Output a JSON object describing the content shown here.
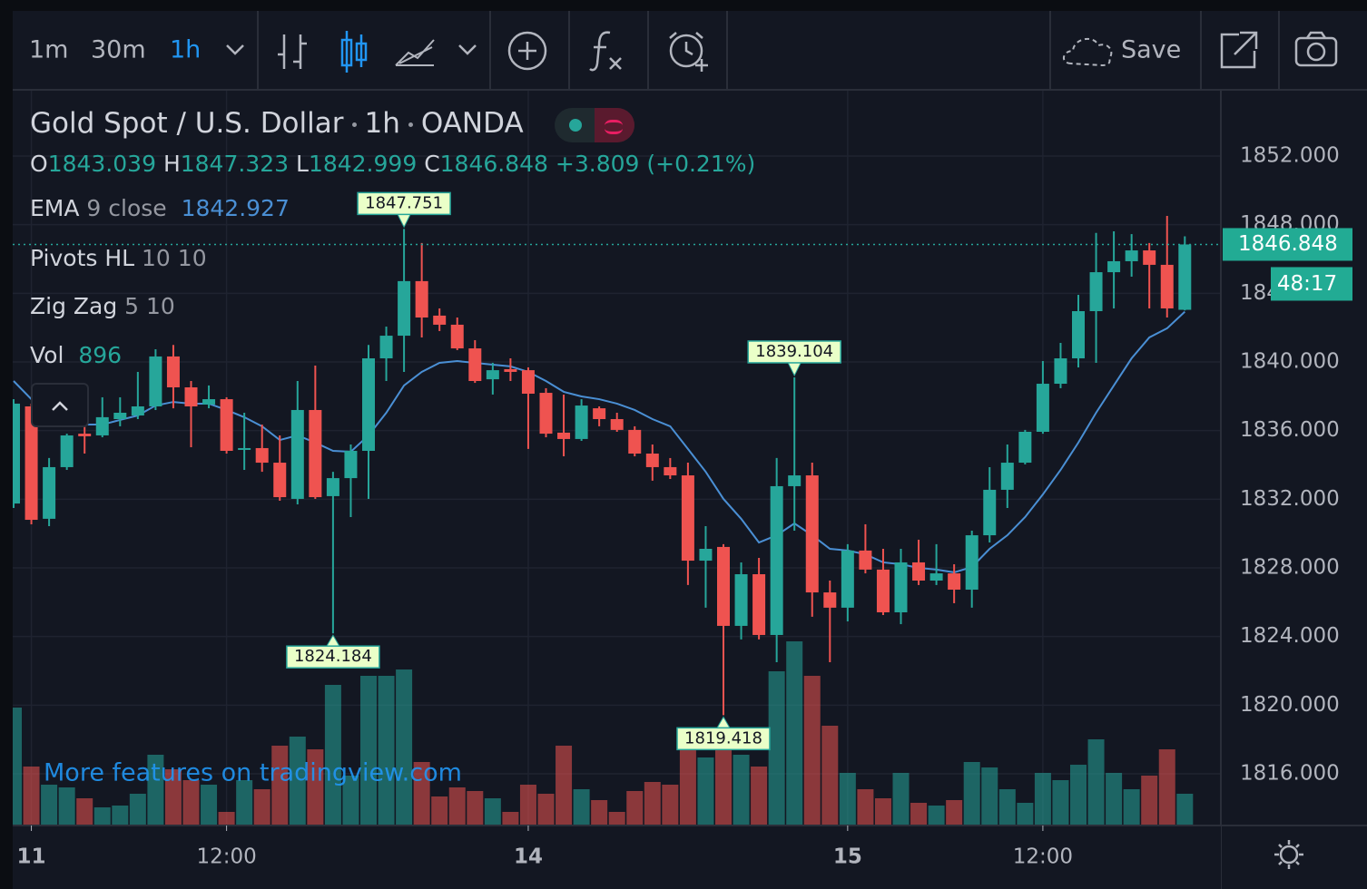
{
  "toolbar": {
    "intervals": [
      "1m",
      "30m",
      "1h"
    ],
    "save": "Save"
  },
  "chart_data": {
    "type": "candlestick",
    "title": "Gold Spot / U.S. Dollar",
    "interval": "1h",
    "source": "OANDA",
    "ohlc_letters": [
      "O",
      "H",
      "L",
      "C"
    ],
    "change_label": "+3.809 (+0.21%)",
    "countdown": "48:17",
    "watermark": "More features on tradingview.com",
    "up_color": "#26a69a",
    "down_color": "#ef5350",
    "categories": [
      null,
      "11",
      null,
      null,
      null,
      null,
      null,
      null,
      null,
      null,
      null,
      null,
      "12:00",
      null,
      null,
      null,
      null,
      null,
      null,
      null,
      null,
      null,
      null,
      null,
      null,
      null,
      null,
      null,
      null,
      "14",
      null,
      null,
      null,
      null,
      null,
      null,
      null,
      null,
      null,
      null,
      null,
      null,
      null,
      null,
      null,
      null,
      null,
      "15",
      null,
      null,
      null,
      null,
      null,
      null,
      null,
      null,
      null,
      null,
      "12:00",
      null,
      null,
      null,
      null,
      null,
      null,
      null,
      null
    ],
    "open": [
      1831.75,
      1837.41,
      1830.86,
      1833.87,
      1835.82,
      1835.72,
      1836.67,
      1836.88,
      1837.41,
      1840.32,
      1838.52,
      1837.52,
      1837.83,
      1834.93,
      1834.98,
      1834.13,
      1832.02,
      1837.2,
      1832.18,
      1833.23,
      1834.82,
      1840.21,
      1841.53,
      1844.71,
      1842.7,
      1842.17,
      1840.79,
      1838.99,
      1839.58,
      1839.52,
      1838.2,
      1835.88,
      1835.51,
      1837.3,
      1836.67,
      1836.04,
      1834.66,
      1833.87,
      1833.39,
      1828.42,
      1829.22,
      1824.62,
      1827.63,
      1824.09,
      1832.76,
      1833.39,
      1826.57,
      1825.68,
      1829.01,
      1827.9,
      1825.41,
      1828.32,
      1827.26,
      1827.68,
      1826.73,
      1829.9,
      1832.55,
      1834.13,
      1835.93,
      1838.73,
      1840.21,
      1842.96,
      1845.23,
      1845.87,
      1846.5,
      1845.66,
      1843.039
    ],
    "high": [
      1837.83,
      1837.57,
      1834.4,
      1835.82,
      1836.51,
      1837.94,
      1837.94,
      1839.42,
      1840.74,
      1840.99,
      1838.89,
      1838.63,
      1837.94,
      1837.04,
      1836.35,
      1835.72,
      1838.89,
      1839.79,
      1833.6,
      1835.19,
      1840.99,
      1842.06,
      1847.751,
      1846.93,
      1843.12,
      1842.59,
      1841.27,
      1839.95,
      1840.21,
      1839.68,
      1838.47,
      1838.1,
      1837.83,
      1837.41,
      1837.04,
      1836.25,
      1835.19,
      1834.4,
      1834.13,
      1830.43,
      1829.38,
      1828.32,
      1828.58,
      1834.4,
      1839.104,
      1834.13,
      1827.26,
      1829.38,
      1830.54,
      1829.11,
      1829.11,
      1829.64,
      1829.38,
      1828.21,
      1830.17,
      1833.87,
      1835.19,
      1836.04,
      1840.05,
      1841.11,
      1843.91,
      1847.52,
      1847.61,
      1847.45,
      1846.93,
      1848.51,
      1847.323
    ],
    "low": [
      1831.49,
      1830.54,
      1830.43,
      1833.71,
      1834.66,
      1835.61,
      1836.25,
      1836.67,
      1837.2,
      1837.3,
      1835.03,
      1837.3,
      1834.66,
      1833.71,
      1833.6,
      1831.91,
      1831.7,
      1832.02,
      1824.184,
      1830.96,
      1832.02,
      1838.89,
      1839.42,
      1841.43,
      1841.8,
      1840.69,
      1838.78,
      1838.1,
      1838.89,
      1834.93,
      1835.61,
      1834.5,
      1835.4,
      1836.25,
      1835.93,
      1834.5,
      1833.08,
      1833.18,
      1827.0,
      1825.68,
      1819.418,
      1823.83,
      1823.83,
      1822.5,
      1830.17,
      1825.15,
      1822.5,
      1824.88,
      1827.68,
      1825.25,
      1824.72,
      1827.0,
      1827.0,
      1825.94,
      1825.68,
      1829.48,
      1831.49,
      1834.03,
      1835.82,
      1838.47,
      1839.68,
      1839.95,
      1843.12,
      1844.97,
      1843.12,
      1842.59,
      1842.999
    ],
    "close": [
      1837.57,
      1830.8,
      1833.87,
      1835.72,
      1835.67,
      1836.78,
      1837.04,
      1837.41,
      1840.32,
      1838.52,
      1837.41,
      1837.83,
      1834.82,
      1834.98,
      1834.13,
      1832.12,
      1837.2,
      1832.12,
      1833.23,
      1834.82,
      1840.21,
      1841.53,
      1844.71,
      1842.59,
      1842.17,
      1840.79,
      1838.89,
      1839.52,
      1839.42,
      1838.15,
      1835.82,
      1835.51,
      1837.46,
      1836.67,
      1836.04,
      1834.66,
      1833.87,
      1833.39,
      1828.42,
      1829.11,
      1824.62,
      1827.63,
      1824.09,
      1832.76,
      1833.39,
      1826.57,
      1825.68,
      1829.01,
      1827.9,
      1825.41,
      1828.32,
      1827.26,
      1827.68,
      1826.73,
      1829.9,
      1832.55,
      1834.13,
      1835.93,
      1838.73,
      1840.21,
      1842.96,
      1845.23,
      1845.87,
      1846.5,
      1845.66,
      1843.12,
      1846.848
    ],
    "ema": {
      "name": "EMA",
      "params": "9 close",
      "color": "#4a8fd4",
      "values": [
        1838.89,
        1837.83,
        1837.2,
        1836.67,
        1836.35,
        1836.35,
        1836.62,
        1836.88,
        1837.46,
        1837.67,
        1837.57,
        1837.57,
        1837.2,
        1836.78,
        1836.25,
        1835.45,
        1835.72,
        1835.3,
        1834.82,
        1834.77,
        1835.72,
        1837.04,
        1838.63,
        1839.42,
        1839.95,
        1840.05,
        1839.95,
        1839.84,
        1839.74,
        1839.42,
        1838.89,
        1838.26,
        1837.99,
        1837.83,
        1837.57,
        1837.2,
        1836.67,
        1836.25,
        1834.93,
        1833.6,
        1832.02,
        1830.86,
        1829.48,
        1829.9,
        1830.59,
        1829.9,
        1829.11,
        1829.01,
        1828.79,
        1828.32,
        1828.21,
        1828.0,
        1827.9,
        1827.74,
        1828.05,
        1829.11,
        1829.9,
        1830.96,
        1832.28,
        1833.71,
        1835.3,
        1837.04,
        1838.63,
        1840.21,
        1841.43,
        1841.96,
        1842.927
      ]
    },
    "pivots": {
      "name": "Pivots HL",
      "params": "10 10",
      "highs": [
        22,
        44
      ],
      "lows": [
        18,
        40
      ]
    },
    "zigzag": {
      "name": "Zig Zag",
      "params": "5 10"
    },
    "volume": {
      "name": "Vol",
      "axis": "y2",
      "values": [
        3328,
        1664,
        1152,
        1075,
        768,
        512,
        563,
        896,
        1997,
        1587,
        1280,
        1152,
        384,
        1280,
        1024,
        2253,
        2509,
        2150,
        3968,
        1408,
        4224,
        4224,
        4403,
        1792,
        819,
        1075,
        973,
        768,
        384,
        1152,
        896,
        2253,
        1024,
        717,
        384,
        973,
        1229,
        1152,
        2253,
        1920,
        2432,
        1997,
        1664,
        4352,
        5197,
        4224,
        2816,
        1485,
        1024,
        768,
        1485,
        640,
        563,
        717,
        1792,
        1638,
        1024,
        640,
        1485,
        1280,
        1715,
        2432,
        1485,
        1024,
        1408,
        2150,
        896
      ]
    },
    "ylim": [
      1812.987,
      1855.806
    ],
    "yticks": [
      {
        "value": 1816,
        "label": "1816.000"
      },
      {
        "value": 1820,
        "label": "1820.000"
      },
      {
        "value": 1824,
        "label": "1824.000"
      },
      {
        "value": 1828,
        "label": "1828.000"
      },
      {
        "value": 1832,
        "label": "1832.000"
      },
      {
        "value": 1836,
        "label": "1836.000"
      },
      {
        "value": 1840,
        "label": "1840.000"
      },
      {
        "value": 1844,
        "label": "1844.000"
      },
      {
        "value": 1848,
        "label": "1848.000"
      },
      {
        "value": 1852,
        "label": "1852.000"
      }
    ],
    "y2lim": [
      0,
      20736
    ],
    "grid": true
  }
}
